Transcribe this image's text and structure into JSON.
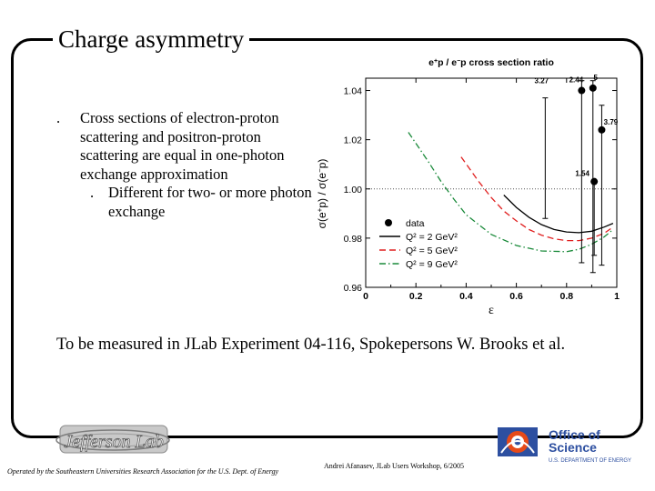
{
  "slide": {
    "title": "Charge asymmetry",
    "bullets": [
      {
        "mark": ".",
        "text": "Cross sections of electron-proton scattering and positron-proton scattering are equal in one-photon exchange approximation"
      }
    ],
    "sub_bullets": [
      {
        "mark": ".",
        "text": "Different for two- or more photon exchange"
      }
    ],
    "caption": "To be measured in JLab Experiment 04-116, Spokepersons W. Brooks et al.",
    "footer_left": "Operated by the Southeastern Universities Research Association for the U.S. Dept. of Energy",
    "footer_right": "Andrei Afanasev, JLab Users Workshop, 6/2005",
    "logo_jlab_text": "Jefferson Lab",
    "logo_doe_line1": "Office of",
    "logo_doe_line2": "Science",
    "logo_doe_line3": "U.S. DEPARTMENT OF ENERGY"
  },
  "chart_data": {
    "type": "scatter",
    "title": "e+p / e-p cross section ratio",
    "xlabel": "ε",
    "ylabel": "σ(e+p) / σ(e−p)",
    "xlim": [
      0,
      1
    ],
    "ylim": [
      0.96,
      1.045
    ],
    "x_ticks": [
      0,
      0.2,
      0.4,
      0.6,
      0.8,
      1
    ],
    "x_tick_labels": [
      "0",
      "0.2",
      "0.4",
      "0.6",
      "0.8",
      "1"
    ],
    "y_ticks": [
      0.96,
      0.98,
      1.0,
      1.02,
      1.04
    ],
    "y_tick_labels": [
      "0.96",
      "0.98",
      "1.00",
      "1.02",
      "1.04"
    ],
    "reference_line": 1.0,
    "data_points": [
      {
        "label": "3.27",
        "x": 0.715,
        "y": 0.988,
        "err_up": 0.049,
        "err_down": 0.0
      },
      {
        "label": "2.44",
        "x": 0.86,
        "y": 1.04,
        "err_up": 0.005,
        "err_down": 0.07
      },
      {
        "label": "5",
        "x": 0.905,
        "y": 1.041,
        "err_up": 0.004,
        "err_down": 0.075
      },
      {
        "label": "3.79",
        "x": 0.94,
        "y": 1.024,
        "err_up": 0.01,
        "err_down": 0.055
      },
      {
        "label": "1.54",
        "x": 0.91,
        "y": 1.003,
        "err_up": 0.0,
        "err_down": 0.03
      }
    ],
    "series": [
      {
        "name": "Q² = 2 GeV²",
        "color": "#000000",
        "dash": "solid",
        "x": [
          0.55,
          0.6,
          0.65,
          0.7,
          0.75,
          0.8,
          0.85,
          0.9,
          0.95,
          0.985
        ],
        "y": [
          0.9975,
          0.9925,
          0.9885,
          0.9855,
          0.9835,
          0.9825,
          0.9822,
          0.9828,
          0.9845,
          0.986
        ]
      },
      {
        "name": "Q² = 5 GeV²",
        "color": "#e02020",
        "dash": "dashed",
        "x": [
          0.38,
          0.45,
          0.5,
          0.55,
          0.6,
          0.65,
          0.7,
          0.75,
          0.8,
          0.85,
          0.9,
          0.95,
          0.985
        ],
        "y": [
          1.013,
          1.003,
          0.9965,
          0.991,
          0.987,
          0.9835,
          0.9812,
          0.9797,
          0.979,
          0.979,
          0.98,
          0.982,
          0.9845
        ]
      },
      {
        "name": "Q² = 9 GeV²",
        "color": "#1a8a3a",
        "dash": "dashdot",
        "x": [
          0.17,
          0.25,
          0.3,
          0.35,
          0.4,
          0.5,
          0.6,
          0.7,
          0.8,
          0.85,
          0.9,
          0.95,
          0.985
        ],
        "y": [
          1.023,
          1.011,
          1.003,
          0.996,
          0.9895,
          0.9815,
          0.977,
          0.9748,
          0.9745,
          0.9755,
          0.9775,
          0.9805,
          0.9835
        ]
      }
    ],
    "legend": {
      "data_label": "data",
      "placement": "lower-left"
    }
  }
}
